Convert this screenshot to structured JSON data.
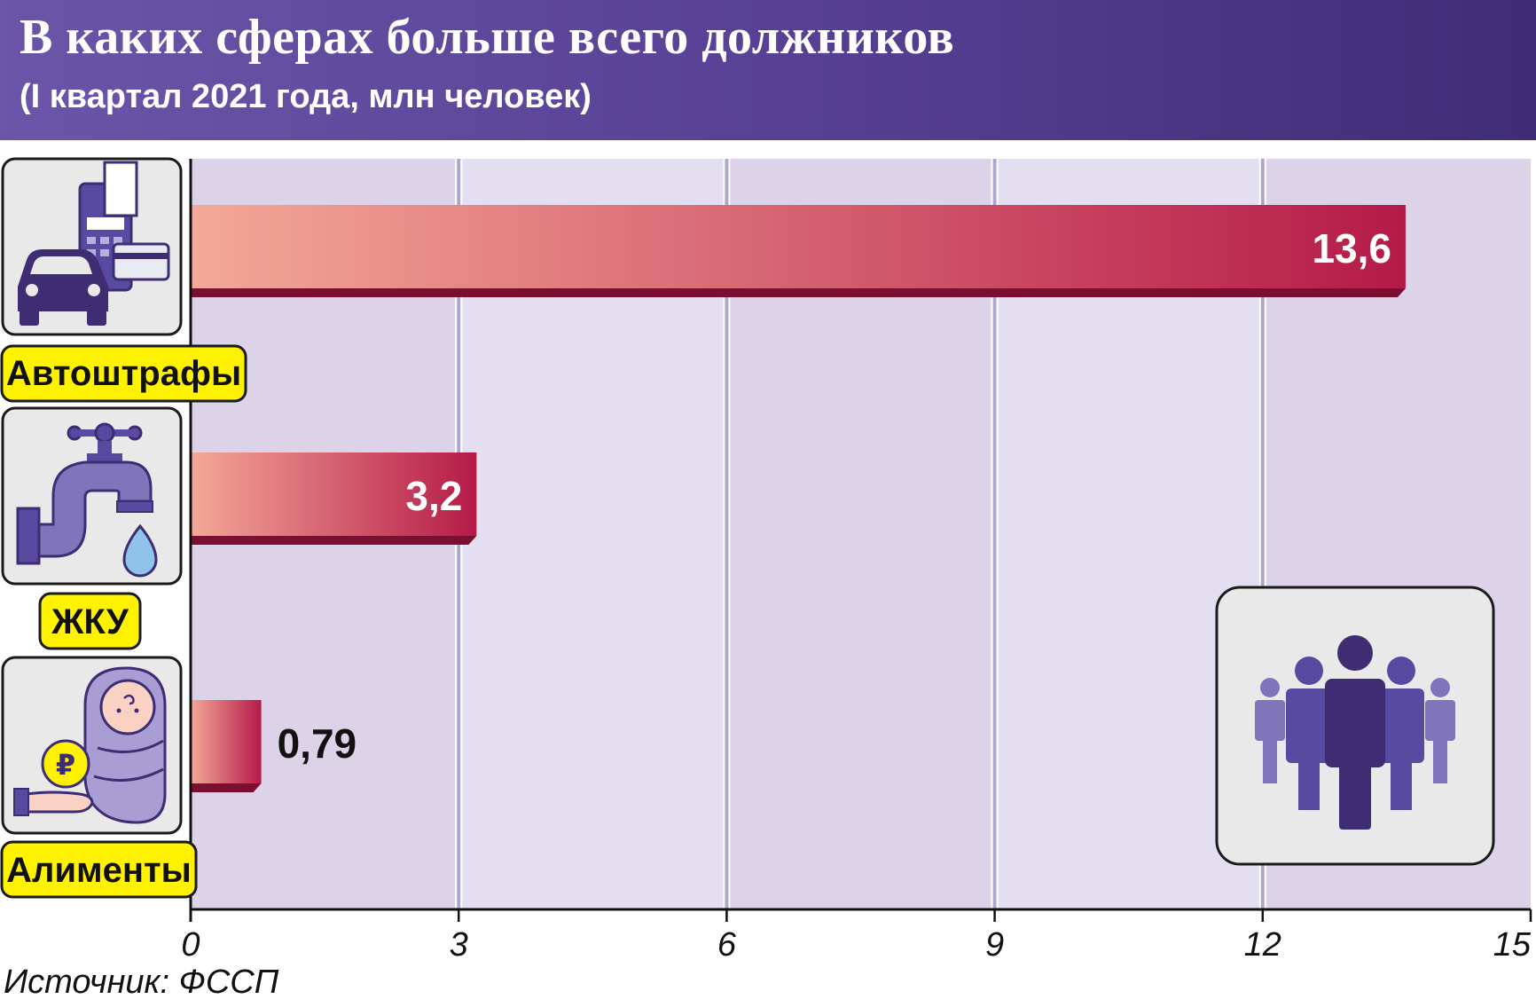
{
  "header": {
    "title": "В каких сферах больше всего должников",
    "subtitle": "(I квартал 2021 года, млн человек)"
  },
  "source": "Источник: ФССП",
  "colors": {
    "header_start": "#6a55a8",
    "header_end": "#3f2c76",
    "bar_start": "#f4a898",
    "bar_end": "#b51a48",
    "bar_shadow": "#7a0f32",
    "label_bg": "#fff200",
    "band_a": "#e4dff0",
    "band_b": "#ddd3e9",
    "gridline": "#ada6cf",
    "icon_dark": "#3e2d73",
    "icon_mid": "#574aa0",
    "icon_light": "#8074bb"
  },
  "chart_data": {
    "type": "bar",
    "orientation": "horizontal",
    "categories": [
      "Автоштрафы",
      "ЖКУ",
      "Алименты"
    ],
    "values": [
      13.6,
      3.2,
      0.79
    ],
    "value_labels": [
      "13,6",
      "3,2",
      "0,79"
    ],
    "xlim": [
      0,
      15
    ],
    "xticks": [
      "0",
      "3",
      "6",
      "9",
      "12",
      "15"
    ],
    "grid": true,
    "icons": [
      "car-fines-icon",
      "water-tap-icon",
      "alimony-baby-icon"
    ],
    "decoration_icon": "people-group-icon"
  }
}
